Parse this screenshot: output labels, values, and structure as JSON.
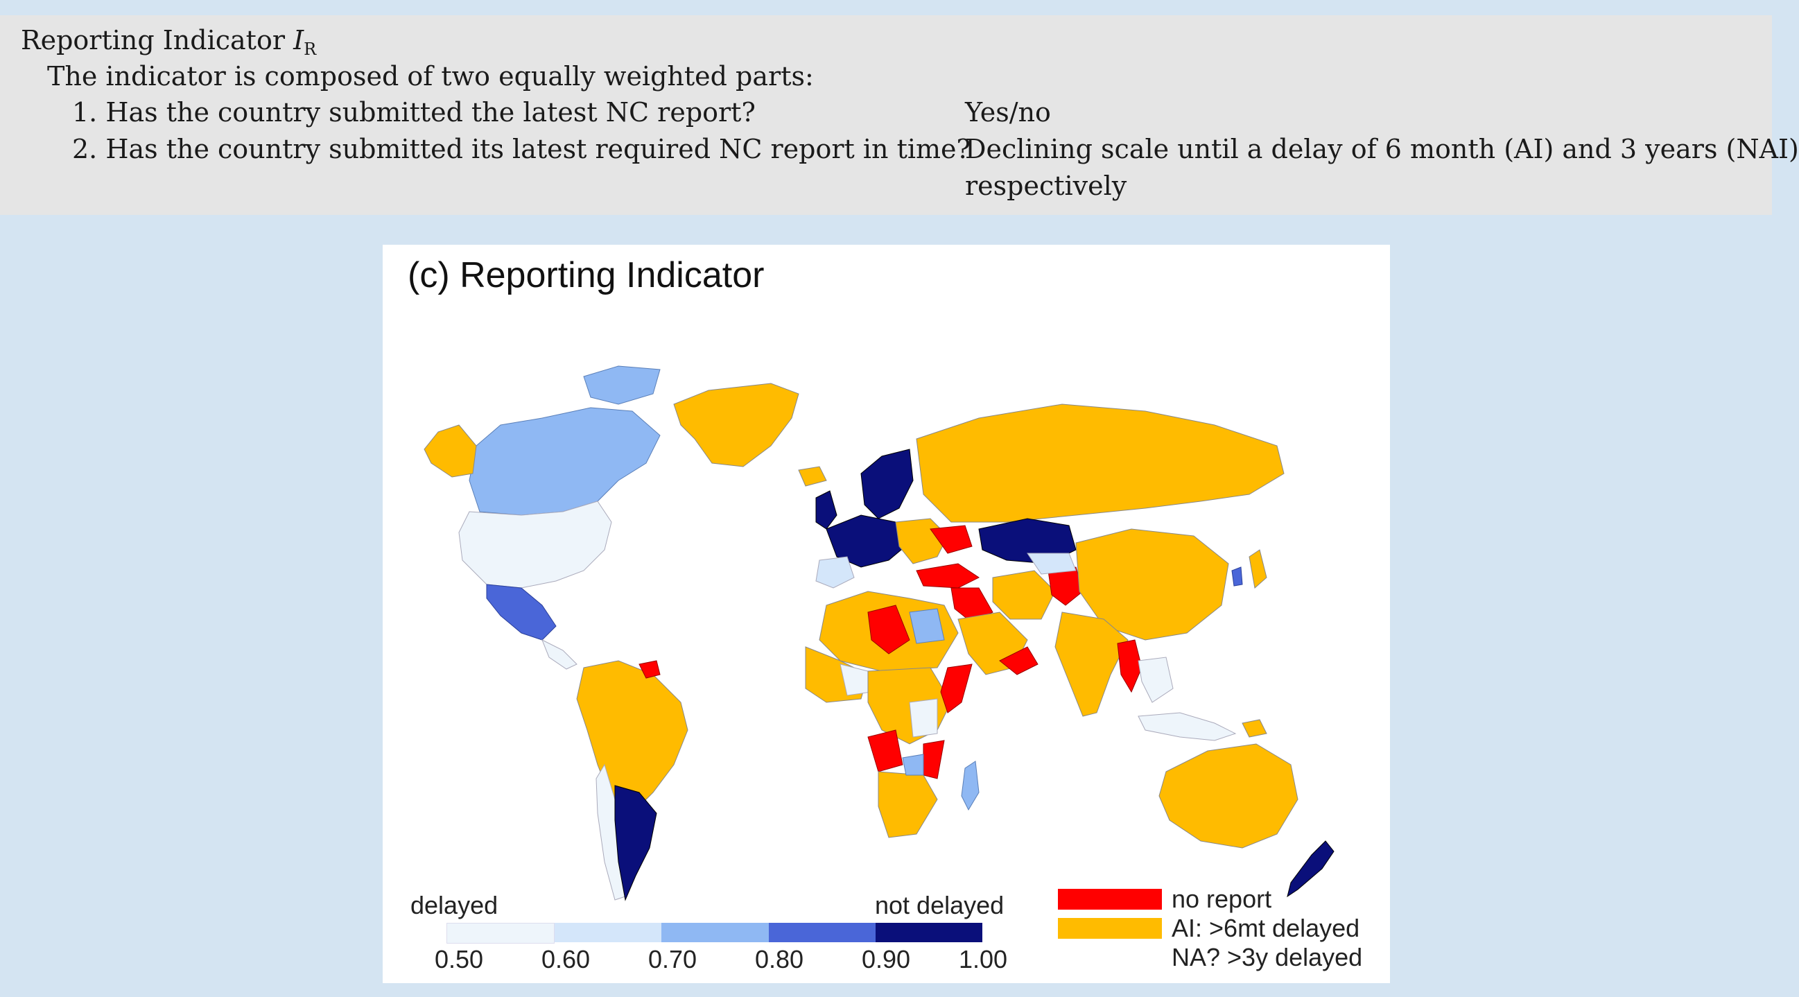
{
  "box": {
    "title_main": "Reporting Indicator ",
    "title_symbol": "I",
    "title_sub": "R",
    "intro": "The indicator is composed of two equally weighted parts:",
    "q1": "1. Has the country submitted the latest NC report?",
    "a1": "Yes/no",
    "q2": "2. Has the country submitted its latest required NC report in time?",
    "a2_line1": "Declining scale until a delay of 6 month (AI) and 3 years (NAI)",
    "a2_line2": "respectively"
  },
  "figure": {
    "title": "(c) Reporting Indicator",
    "scale_left": "delayed",
    "scale_right": "not delayed",
    "ticks": [
      "0.50",
      "0.60",
      "0.70",
      "0.80",
      "0.90",
      "1.00"
    ],
    "scale_colors": [
      "#eef5fb",
      "#d4e6fa",
      "#8fb8f3",
      "#4a66d8",
      "#0a0f7a"
    ],
    "legend": [
      {
        "label": "no report",
        "color": "#ff0000"
      },
      {
        "label": "AI: >6mt delayed",
        "color": "#ffbb00"
      },
      {
        "label": "NA? >3y delayed",
        "color": "#ffffff"
      }
    ]
  }
}
